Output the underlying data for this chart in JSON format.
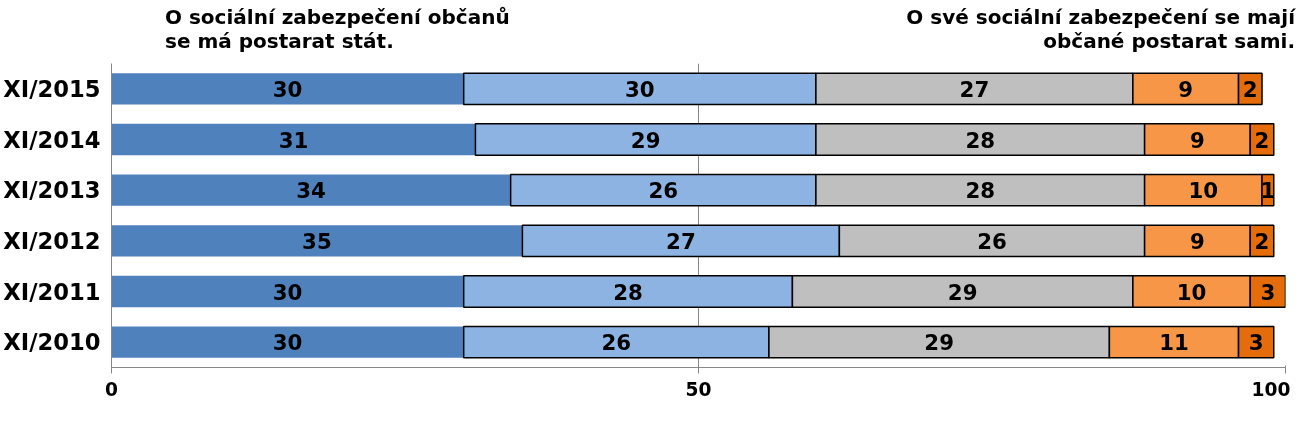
{
  "chart_data": {
    "type": "bar",
    "orientation": "horizontal",
    "stacked": true,
    "data_labels": true,
    "grid": "x",
    "annotations": [
      "O sociální zabezpečení občanů\nse má postarat stát.",
      "O své sociální zabezpečení se mají\nobčané postarat sami."
    ],
    "categories": [
      "XI/2015",
      "XI/2014",
      "XI/2013",
      "XI/2012",
      "XI/2011",
      "XI/2010"
    ],
    "xlim": [
      0,
      100
    ],
    "xticks": [
      0,
      50,
      100
    ],
    "series": [
      {
        "color": "#4f81bd",
        "values": [
          30,
          31,
          34,
          35,
          30,
          30
        ]
      },
      {
        "color": "#8db3e2",
        "values": [
          30,
          29,
          26,
          27,
          28,
          26
        ]
      },
      {
        "color": "#bfbfbf",
        "values": [
          27,
          28,
          28,
          26,
          29,
          29
        ]
      },
      {
        "color": "#f79646",
        "values": [
          9,
          9,
          10,
          9,
          10,
          11
        ]
      },
      {
        "color": "#e46c0a",
        "values": [
          2,
          2,
          1,
          2,
          3,
          3
        ]
      }
    ]
  }
}
